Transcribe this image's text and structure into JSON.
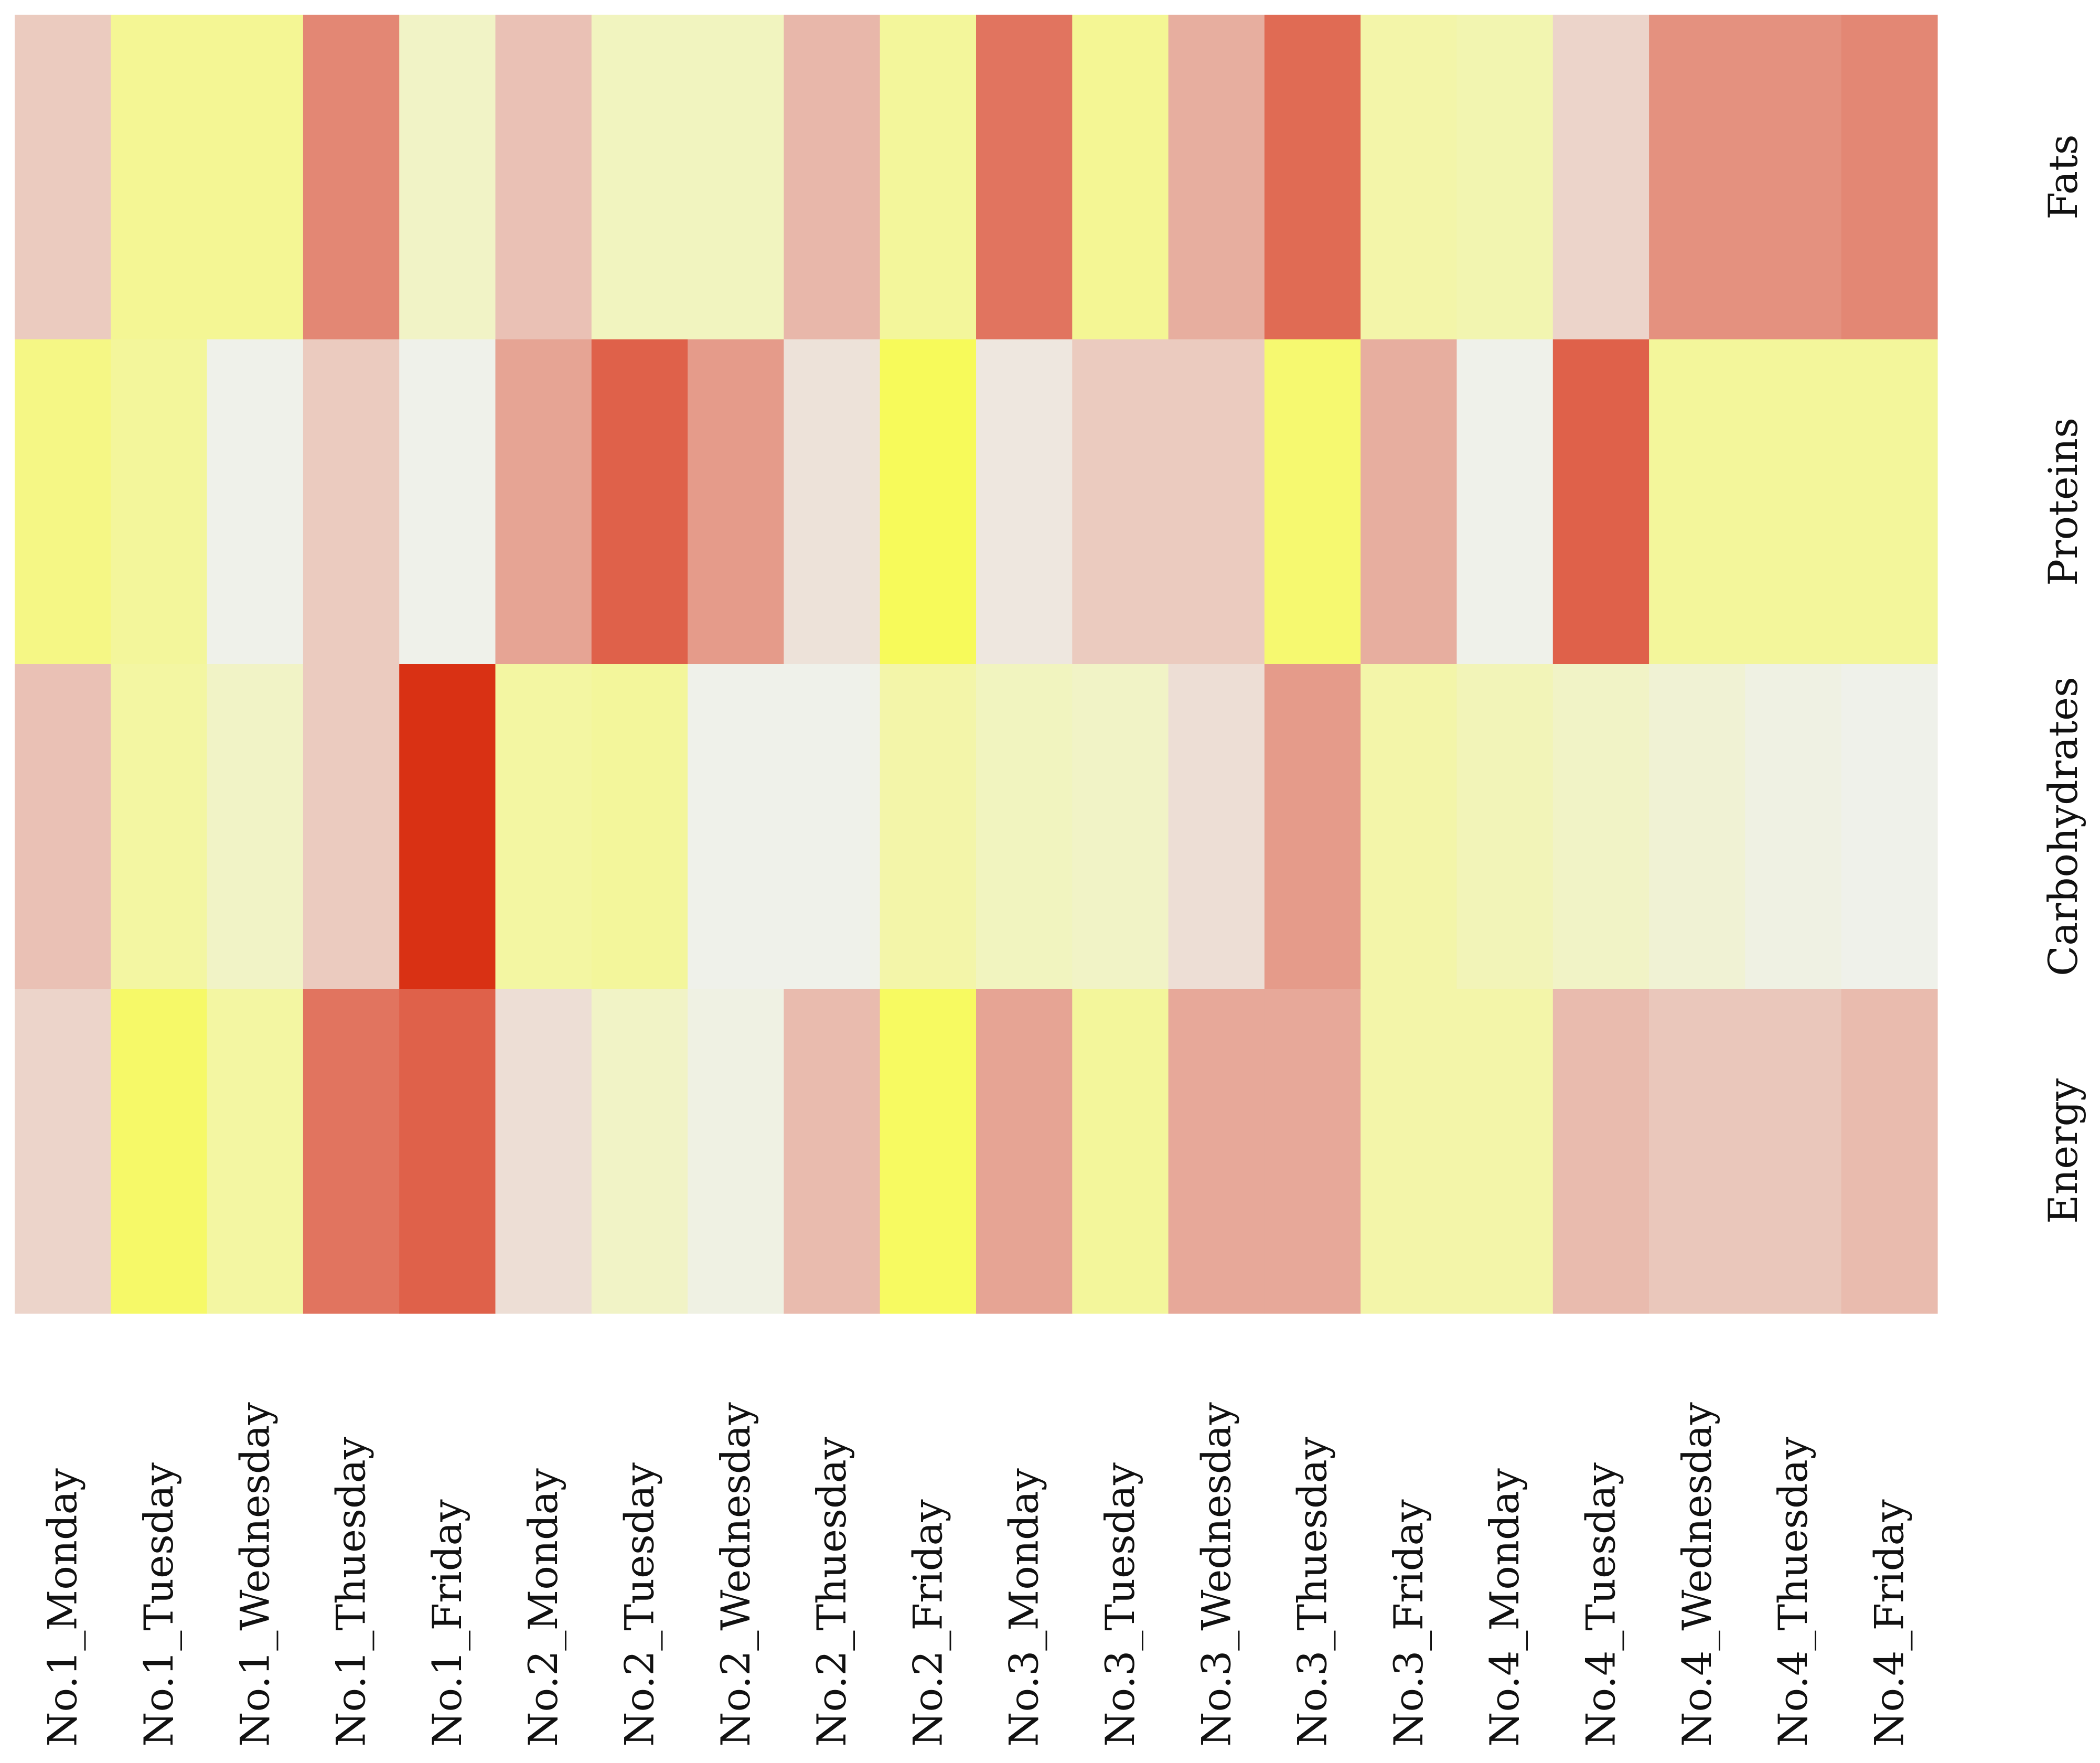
{
  "chart_data": {
    "type": "heatmap",
    "title": "",
    "xlabel": "",
    "ylabel": "",
    "columns": [
      "No.1_Monday",
      "No.1_Tuesday",
      "No.1_Wednesday",
      "No.1_Thuesday",
      "No.1_Friday",
      "No.2_Monday",
      "No.2_Tuesday",
      "No.2_Wednesday",
      "No.2_Thuesday",
      "No.2_Friday",
      "No.3_Monday",
      "No.3_Tuesday",
      "No.3_Wednesday",
      "No.3_Thuesday",
      "No.3_Friday",
      "No.4_Monday",
      "No.4_Tuesday",
      "No.4_Wednesday",
      "No.4_Thuesday",
      "No.4_Friday"
    ],
    "rows": [
      "Fats",
      "Proteins",
      "Carbohydrates",
      "Energy"
    ],
    "values": [
      [
        0.2,
        -0.6,
        -0.6,
        0.55,
        -0.25,
        0.25,
        -0.3,
        -0.3,
        0.3,
        -0.55,
        0.65,
        -0.6,
        0.35,
        0.7,
        -0.45,
        -0.4,
        0.15,
        0.5,
        0.5,
        0.55
      ],
      [
        -0.7,
        -0.55,
        0.0,
        0.2,
        0.0,
        0.4,
        0.75,
        0.45,
        0.08,
        -1.0,
        0.05,
        0.2,
        0.2,
        -0.85,
        0.35,
        0.0,
        0.75,
        -0.55,
        -0.55,
        -0.55
      ],
      [
        0.25,
        -0.5,
        -0.25,
        0.2,
        1.0,
        -0.5,
        -0.55,
        0.0,
        0.0,
        -0.45,
        -0.3,
        -0.25,
        0.1,
        0.45,
        -0.45,
        -0.35,
        -0.25,
        -0.15,
        -0.05,
        0.0
      ],
      [
        0.15,
        -0.9,
        -0.5,
        0.65,
        0.75,
        0.1,
        -0.25,
        -0.05,
        0.28,
        -0.95,
        0.4,
        -0.55,
        0.38,
        0.38,
        -0.45,
        -0.45,
        0.28,
        0.22,
        0.22,
        0.28
      ]
    ],
    "color_scale": {
      "min": -1.0,
      "mid": 0.0,
      "max": 1.0,
      "min_color": "#f7fa5a",
      "mid_color": "#eff1ea",
      "max_color": "#d93114"
    },
    "legend": "none",
    "grid": false
  }
}
